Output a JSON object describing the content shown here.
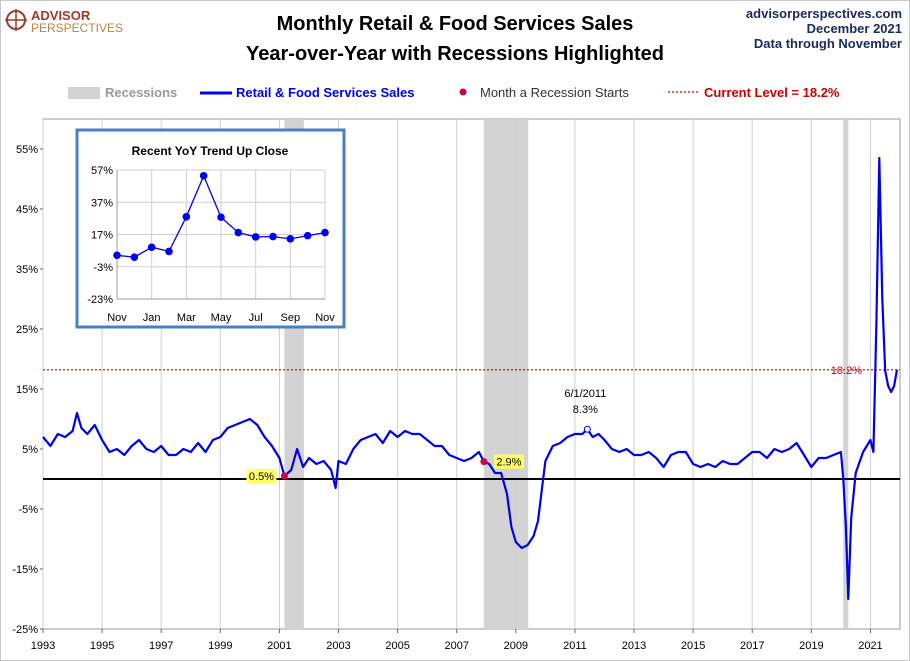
{
  "header": {
    "logo_top": "ADVISOR",
    "logo_bottom": "PERSPECTIVES",
    "title_line1": "Monthly Retail & Food Services Sales",
    "title_line2": "Year-over-Year with Recessions Highlighted",
    "source": "advisorperspectives.com",
    "date": "December 2021",
    "data_through": "Data through November"
  },
  "colors": {
    "series": "#0000ee",
    "recession": "#d3d3d3",
    "current_level": "#cc0000",
    "recession_marker": "#cc0055",
    "inset_border": "#4a7fc0",
    "label_highlight": "#ffff66"
  },
  "chart_data": [
    {
      "type": "line",
      "title": "",
      "xlabel": "",
      "ylabel": "",
      "xlim": [
        1993.0,
        2022.0
      ],
      "ylim": [
        -25,
        60
      ],
      "y_ticks": [
        -25,
        -15,
        -5,
        5,
        15,
        25,
        35,
        45,
        55
      ],
      "y_tick_labels": [
        "-25%",
        "-15%",
        "-5%",
        "5%",
        "15%",
        "25%",
        "35%",
        "45%",
        "55%"
      ],
      "x_ticks": [
        1993,
        1995,
        1997,
        1999,
        2001,
        2003,
        2005,
        2007,
        2009,
        2011,
        2013,
        2015,
        2017,
        2019,
        2021
      ],
      "x_tick_labels": [
        "1993",
        "1995",
        "1997",
        "1999",
        "2001",
        "2003",
        "2005",
        "2007",
        "2009",
        "2011",
        "2013",
        "2015",
        "2017",
        "2019",
        "2021"
      ],
      "grid": "vertical",
      "legend_position": "top",
      "legend": {
        "recessions": "Recessions",
        "series": "Retail & Food Services Sales",
        "recession_start": "Month a Recession Starts",
        "current_level": "Current Level = 18.2%"
      },
      "recessions": [
        [
          2001.17,
          2001.83
        ],
        [
          2007.92,
          2009.42
        ],
        [
          2020.08,
          2020.25
        ]
      ],
      "recession_starts": [
        {
          "x": 2001.17,
          "y": 0.5,
          "label": "0.5%"
        },
        {
          "x": 2007.92,
          "y": 2.9,
          "label": "2.9%"
        }
      ],
      "current_level": {
        "y": 18.2,
        "label": "18.2%"
      },
      "zero_line": 0,
      "annotation": {
        "x": 2011.42,
        "y": 8.3,
        "date_label": "6/1/2011",
        "value_label": "8.3%"
      },
      "series": [
        {
          "name": "Retail & Food Services Sales",
          "points": [
            [
              1993.0,
              7.0
            ],
            [
              1993.25,
              5.5
            ],
            [
              1993.5,
              7.5
            ],
            [
              1993.75,
              7.0
            ],
            [
              1994.0,
              8.0
            ],
            [
              1994.15,
              11.0
            ],
            [
              1994.3,
              8.5
            ],
            [
              1994.5,
              7.5
            ],
            [
              1994.75,
              9.0
            ],
            [
              1995.0,
              6.5
            ],
            [
              1995.25,
              4.5
            ],
            [
              1995.5,
              5.0
            ],
            [
              1995.75,
              4.0
            ],
            [
              1996.0,
              5.5
            ],
            [
              1996.25,
              6.5
            ],
            [
              1996.5,
              5.0
            ],
            [
              1996.75,
              4.5
            ],
            [
              1997.0,
              5.5
            ],
            [
              1997.25,
              4.0
            ],
            [
              1997.5,
              4.0
            ],
            [
              1997.75,
              5.0
            ],
            [
              1998.0,
              4.5
            ],
            [
              1998.25,
              6.0
            ],
            [
              1998.5,
              4.5
            ],
            [
              1998.75,
              6.5
            ],
            [
              1999.0,
              7.0
            ],
            [
              1999.25,
              8.5
            ],
            [
              1999.5,
              9.0
            ],
            [
              1999.75,
              9.5
            ],
            [
              2000.0,
              10.0
            ],
            [
              2000.25,
              9.0
            ],
            [
              2000.5,
              7.0
            ],
            [
              2000.75,
              5.5
            ],
            [
              2001.0,
              3.5
            ],
            [
              2001.17,
              0.5
            ],
            [
              2001.4,
              1.5
            ],
            [
              2001.6,
              5.0
            ],
            [
              2001.8,
              2.0
            ],
            [
              2002.0,
              3.5
            ],
            [
              2002.25,
              2.5
            ],
            [
              2002.5,
              3.0
            ],
            [
              2002.75,
              1.5
            ],
            [
              2002.9,
              -1.5
            ],
            [
              2003.0,
              3.0
            ],
            [
              2003.25,
              2.5
            ],
            [
              2003.5,
              5.0
            ],
            [
              2003.75,
              6.5
            ],
            [
              2004.0,
              7.0
            ],
            [
              2004.25,
              7.5
            ],
            [
              2004.5,
              6.0
            ],
            [
              2004.75,
              8.0
            ],
            [
              2005.0,
              7.0
            ],
            [
              2005.25,
              8.0
            ],
            [
              2005.5,
              7.5
            ],
            [
              2005.75,
              7.5
            ],
            [
              2006.0,
              6.5
            ],
            [
              2006.25,
              5.5
            ],
            [
              2006.5,
              5.5
            ],
            [
              2006.75,
              4.0
            ],
            [
              2007.0,
              3.5
            ],
            [
              2007.25,
              3.0
            ],
            [
              2007.5,
              3.5
            ],
            [
              2007.75,
              4.5
            ],
            [
              2007.92,
              2.9
            ],
            [
              2008.1,
              2.5
            ],
            [
              2008.3,
              1.0
            ],
            [
              2008.5,
              1.0
            ],
            [
              2008.7,
              -2.5
            ],
            [
              2008.85,
              -8.0
            ],
            [
              2009.0,
              -10.5
            ],
            [
              2009.2,
              -11.5
            ],
            [
              2009.4,
              -11.0
            ],
            [
              2009.6,
              -9.5
            ],
            [
              2009.75,
              -7.0
            ],
            [
              2009.9,
              -1.0
            ],
            [
              2010.0,
              3.0
            ],
            [
              2010.25,
              5.5
            ],
            [
              2010.5,
              6.0
            ],
            [
              2010.75,
              7.0
            ],
            [
              2011.0,
              7.5
            ],
            [
              2011.25,
              7.5
            ],
            [
              2011.42,
              8.3
            ],
            [
              2011.6,
              7.0
            ],
            [
              2011.8,
              7.5
            ],
            [
              2012.0,
              6.5
            ],
            [
              2012.25,
              5.0
            ],
            [
              2012.5,
              4.5
            ],
            [
              2012.75,
              5.0
            ],
            [
              2013.0,
              4.0
            ],
            [
              2013.25,
              4.0
            ],
            [
              2013.5,
              4.5
            ],
            [
              2013.75,
              3.5
            ],
            [
              2014.0,
              2.0
            ],
            [
              2014.25,
              4.0
            ],
            [
              2014.5,
              4.5
            ],
            [
              2014.75,
              4.5
            ],
            [
              2015.0,
              2.5
            ],
            [
              2015.25,
              2.0
            ],
            [
              2015.5,
              2.5
            ],
            [
              2015.75,
              2.0
            ],
            [
              2016.0,
              3.0
            ],
            [
              2016.25,
              2.5
            ],
            [
              2016.5,
              2.5
            ],
            [
              2016.75,
              3.5
            ],
            [
              2017.0,
              4.5
            ],
            [
              2017.25,
              4.5
            ],
            [
              2017.5,
              3.5
            ],
            [
              2017.75,
              5.0
            ],
            [
              2018.0,
              4.5
            ],
            [
              2018.25,
              5.0
            ],
            [
              2018.5,
              6.0
            ],
            [
              2018.75,
              4.0
            ],
            [
              2019.0,
              2.0
            ],
            [
              2019.25,
              3.5
            ],
            [
              2019.5,
              3.5
            ],
            [
              2019.75,
              4.0
            ],
            [
              2020.0,
              4.5
            ],
            [
              2020.08,
              0.0
            ],
            [
              2020.17,
              -8.0
            ],
            [
              2020.25,
              -20.0
            ],
            [
              2020.35,
              -6.5
            ],
            [
              2020.5,
              1.0
            ],
            [
              2020.75,
              4.5
            ],
            [
              2021.0,
              6.5
            ],
            [
              2021.1,
              4.5
            ],
            [
              2021.2,
              26.0
            ],
            [
              2021.3,
              53.5
            ],
            [
              2021.4,
              30.0
            ],
            [
              2021.5,
              18.0
            ],
            [
              2021.6,
              15.5
            ],
            [
              2021.7,
              14.5
            ],
            [
              2021.8,
              15.5
            ],
            [
              2021.9,
              18.2
            ]
          ]
        }
      ]
    },
    {
      "type": "line",
      "title": "Recent  YoY Trend Up Close",
      "xlabel": "",
      "ylabel": "",
      "ylim": [
        -23,
        57
      ],
      "y_ticks": [
        -23,
        -3,
        17,
        37,
        57
      ],
      "y_tick_labels": [
        "-23%",
        "-3%",
        "17%",
        "37%",
        "57%"
      ],
      "categories": [
        "Nov",
        "Dec",
        "Jan",
        "Feb",
        "Mar",
        "Apr",
        "May",
        "Jun",
        "Jul",
        "Aug",
        "Sep",
        "Oct",
        "Nov"
      ],
      "x_tick_labels": [
        "Nov",
        "Jan",
        "Mar",
        "May",
        "Jul",
        "Sep",
        "Nov"
      ],
      "grid": "both",
      "series": [
        {
          "name": "",
          "values": [
            4.1,
            2.9,
            9.1,
            6.5,
            28.0,
            53.4,
            27.7,
            18.2,
            15.5,
            15.7,
            14.3,
            16.3,
            18.2
          ]
        }
      ]
    }
  ]
}
